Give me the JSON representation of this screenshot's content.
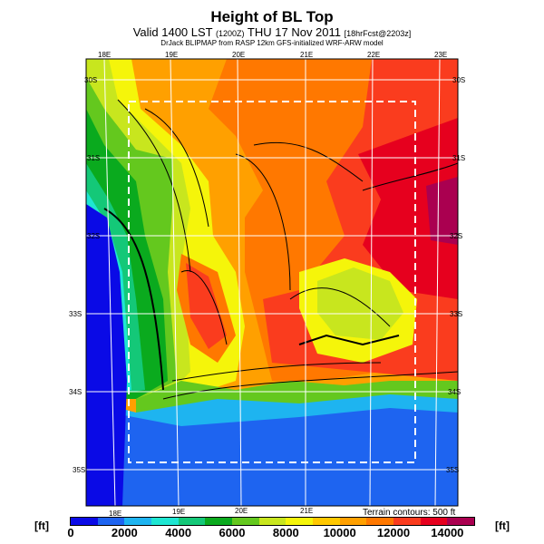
{
  "header": {
    "title": "Height of BL Top",
    "subtitle_main": "Valid 1400 LST",
    "subtitle_code": "(1200Z)",
    "subtitle_date": "THU 17 Nov 2011",
    "subtitle_fcst": "[18hrFcst@2203z]",
    "credit": "DrJack BLIPMAP from RASP 12km GFS-initialized WRF-ARW model"
  },
  "map": {
    "lon_labels_top": [
      "18E",
      "19E",
      "20E",
      "21E",
      "22E",
      "23E"
    ],
    "lon_labels_bottom": [
      "18E",
      "19E",
      "20E",
      "21E"
    ],
    "lat_labels_left": [
      "30S",
      "31S",
      "32S",
      "33S",
      "34S",
      "35S"
    ],
    "lat_labels_right": [
      "30S",
      "31S",
      "32S",
      "33S",
      "34S",
      "35S"
    ],
    "terrain_note": "Terrain contours: 500 ft"
  },
  "colorbar": {
    "unit_left": "[ft]",
    "unit_right": "[ft]",
    "ticks": [
      "0",
      "2000",
      "4000",
      "6000",
      "8000",
      "10000",
      "12000",
      "14000"
    ],
    "min": 0,
    "max": 15000,
    "step": 1000,
    "colors": [
      "#0a0ae6",
      "#1e64f0",
      "#1eb4f0",
      "#1ee6d2",
      "#14c878",
      "#0aaa1e",
      "#64c81e",
      "#c8e61e",
      "#f5f50a",
      "#ffc800",
      "#ffa000",
      "#ff7800",
      "#fa3c1e",
      "#e6001e",
      "#aa0050"
    ]
  }
}
